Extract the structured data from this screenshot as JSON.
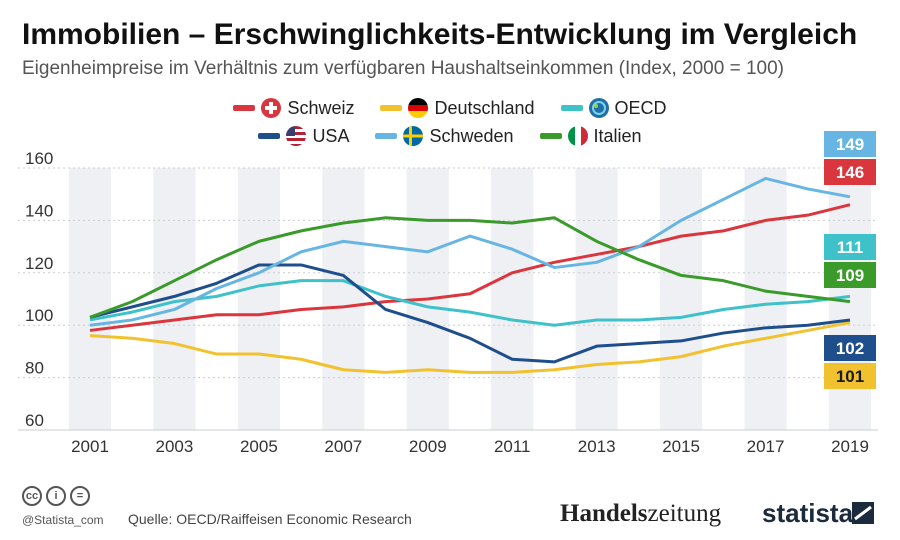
{
  "title": "Immobilien – Erschwinglichkeits-Entwicklung im Vergleich",
  "subtitle": "Eigenheimpreise im Verhältnis zum verfügbaren Haushaltseinkommen (Index, 2000 = 100)",
  "legend": {
    "row1": [
      {
        "label": "Schweiz",
        "color": "#d9363e",
        "flag": "ch-flag-icon"
      },
      {
        "label": "Deutschland",
        "color": "#f2c12e",
        "flag": "de-flag-icon"
      },
      {
        "label": "OECD",
        "color": "#3fc1c9",
        "flag": "oecd-logo-icon"
      }
    ],
    "row2": [
      {
        "label": "USA",
        "color": "#1f4e8c",
        "flag": "us-flag-icon"
      },
      {
        "label": "Schweden",
        "color": "#66b5e3",
        "flag": "se-flag-icon"
      },
      {
        "label": "Italien",
        "color": "#3a9a2a",
        "flag": "it-flag-icon"
      }
    ]
  },
  "footer": {
    "handle": "@Statista_com",
    "source": "Quelle: OECD/Raiffeisen Economic Research",
    "brand_left": "Handels",
    "brand_right": "zeitung",
    "brand_statista": "statista"
  },
  "chart_data": {
    "type": "line",
    "x": [
      2001,
      2002,
      2003,
      2004,
      2005,
      2006,
      2007,
      2008,
      2009,
      2010,
      2011,
      2012,
      2013,
      2014,
      2015,
      2016,
      2017,
      2018,
      2019
    ],
    "x_tick_labels": [
      "2001",
      "2003",
      "2005",
      "2007",
      "2009",
      "2011",
      "2013",
      "2015",
      "2017",
      "2019"
    ],
    "ylim": [
      60,
      160
    ],
    "y_ticks": [
      60,
      80,
      100,
      120,
      140,
      160
    ],
    "grid": "horizontal",
    "series": [
      {
        "name": "Schweiz",
        "color": "#d9363e",
        "values": [
          98,
          100,
          102,
          104,
          104,
          106,
          107,
          109,
          110,
          112,
          120,
          124,
          127,
          130,
          134,
          136,
          140,
          142,
          146
        ]
      },
      {
        "name": "Deutschland",
        "color": "#f2c12e",
        "values": [
          96,
          95,
          93,
          89,
          89,
          87,
          83,
          82,
          83,
          82,
          82,
          83,
          85,
          86,
          88,
          92,
          95,
          98,
          101
        ]
      },
      {
        "name": "OECD",
        "color": "#3fc1c9",
        "values": [
          102,
          105,
          109,
          111,
          115,
          117,
          117,
          111,
          107,
          105,
          102,
          100,
          102,
          102,
          103,
          106,
          108,
          109,
          111
        ]
      },
      {
        "name": "USA",
        "color": "#1f4e8c",
        "values": [
          103,
          107,
          111,
          116,
          123,
          123,
          119,
          106,
          101,
          95,
          87,
          86,
          92,
          93,
          94,
          97,
          99,
          100,
          102
        ]
      },
      {
        "name": "Schweden",
        "color": "#66b5e3",
        "values": [
          100,
          102,
          106,
          114,
          120,
          128,
          132,
          130,
          128,
          134,
          129,
          122,
          124,
          130,
          140,
          148,
          156,
          152,
          149
        ]
      },
      {
        "name": "Italien",
        "color": "#3a9a2a",
        "values": [
          103,
          109,
          117,
          125,
          132,
          136,
          139,
          141,
          140,
          140,
          139,
          141,
          132,
          125,
          119,
          117,
          113,
          111,
          109
        ]
      }
    ],
    "end_labels": [
      {
        "text": "149",
        "color": "#66b5e3",
        "series": "Schweden"
      },
      {
        "text": "146",
        "color": "#d9363e",
        "series": "Schweiz"
      },
      {
        "text": "111",
        "color": "#3fc1c9",
        "series": "OECD"
      },
      {
        "text": "109",
        "color": "#3a9a2a",
        "series": "Italien"
      },
      {
        "text": "102",
        "color": "#1f4e8c",
        "series": "USA"
      },
      {
        "text": "101",
        "color": "#f2c12e",
        "series": "Deutschland"
      }
    ]
  }
}
